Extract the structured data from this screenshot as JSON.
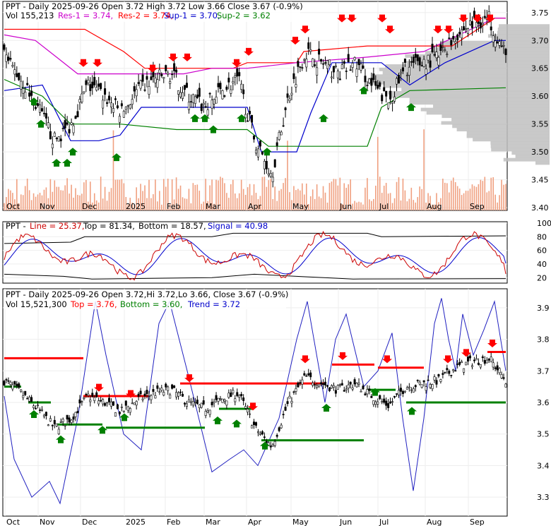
{
  "chart_data": [
    {
      "type": "candlestick",
      "panel": "price",
      "header": {
        "symbol": "PPT",
        "title": "PPT - Daily 2025-09-26 Open 3.72  High 3.72  Low 3.66  Close 3.67 (-0.9%)",
        "vol_label": "Vol 155,213",
        "res1_label": "Res-1 = 3.74,",
        "res2_label": "Res-2 = 3.74,",
        "sup1_label": "Sup-1 = 3.70,",
        "sup2_label": "Sup-2 = 3.62"
      },
      "last": {
        "date": "2025-09-26",
        "open": 3.72,
        "high": 3.72,
        "low": 3.66,
        "close": 3.67,
        "change_pct": -0.9,
        "volume": 155213
      },
      "levels": {
        "res1": 3.74,
        "res2": 3.74,
        "sup1": 3.7,
        "sup2": 3.62
      },
      "y_ticks": [
        "3.75",
        "3.70",
        "3.65",
        "3.60",
        "3.55",
        "3.50",
        "3.45",
        "3.40"
      ],
      "ylim": [
        3.395,
        3.77
      ],
      "x_labels": [
        "Oct",
        "Nov",
        "Dec",
        "2025",
        "Feb",
        "Mar",
        "Apr",
        "May",
        "Jun",
        "Jul",
        "Aug",
        "Sep"
      ],
      "closes_approx": [
        3.67,
        3.63,
        3.58,
        3.52,
        3.55,
        3.62,
        3.6,
        3.57,
        3.61,
        3.63,
        3.64,
        3.6,
        3.58,
        3.61,
        3.63,
        3.52,
        3.46,
        3.6,
        3.68,
        3.66,
        3.64,
        3.66,
        3.62,
        3.59,
        3.65,
        3.66,
        3.67,
        3.71,
        3.73,
        3.74,
        3.67
      ]
    },
    {
      "type": "line",
      "panel": "stochastic",
      "header": {
        "symbol": "PPT",
        "line_label": "Line = 25.37,",
        "top_label": "Top = 81.34,",
        "bottom_label": "Bottom = 18.57,",
        "signal_label": "Signal = 40.98"
      },
      "values": {
        "line": 25.37,
        "top": 81.34,
        "bottom": 18.57,
        "signal": 40.98
      },
      "y_ticks": [
        "100",
        "80",
        "60",
        "40",
        "20"
      ],
      "ylim": [
        12,
        102
      ]
    },
    {
      "type": "candlestick",
      "panel": "trend",
      "header": {
        "symbol": "PPT",
        "title": "PPT - Daily 2025-09-26 Open 3.72,Hi 3.72,Lo 3.66, Close 3.67 (-0.9%)",
        "vol_label": "Vol 15,521,300",
        "top_label": "Top = 3.76,",
        "bottom_label": "Bottom = 3.60,",
        "trend_label": "Trend = 3.72"
      },
      "values": {
        "volume": 15521300,
        "top": 3.76,
        "bottom": 3.6,
        "trend": 3.72
      },
      "y_ticks": [
        "3.9",
        "3.8",
        "3.7",
        "3.6",
        "3.5",
        "3.4",
        "3.3"
      ],
      "ylim": [
        3.24,
        3.96
      ],
      "x_labels": [
        "Oct",
        "Nov",
        "Dec",
        "2025",
        "Feb",
        "Mar",
        "Apr",
        "May",
        "Jun",
        "Jul",
        "Aug",
        "Sep"
      ]
    }
  ],
  "colors": {
    "up_arrow": "#008000",
    "down_arrow": "#ff0000",
    "res1": "#cc00cc",
    "res2": "#ff0000",
    "sup1": "#0000cc",
    "sup2": "#008000",
    "volume": "#f0a080",
    "profile": "#c0c0c0",
    "signal": "#0000cc",
    "line": "#cc0000"
  }
}
